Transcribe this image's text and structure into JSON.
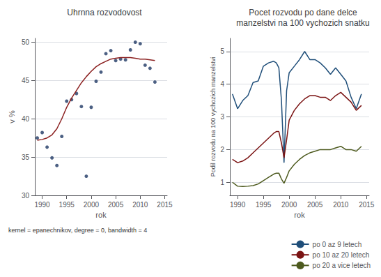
{
  "chart_data": [
    {
      "type": "scatter",
      "title": "Uhrnna rozvodovost",
      "xlabel": "rok",
      "ylabel": "v %",
      "annotations": [
        "kernel = epanechnikov, degree = 0, bandwidth = 4"
      ],
      "xlim": [
        1988.5,
        2015.5
      ],
      "ylim": [
        30,
        50.5
      ],
      "xticks": [
        1990,
        1995,
        2000,
        2005,
        2010,
        2015
      ],
      "yticks": [
        30,
        35,
        40,
        45,
        50
      ],
      "grid": true,
      "x": [
        1989,
        1990,
        1991,
        1992,
        1993,
        1994,
        1995,
        1996,
        1997,
        1998,
        1999,
        2000,
        2001,
        2002,
        2003,
        2004,
        2005,
        2006,
        2007,
        2008,
        2009,
        2010,
        2011,
        2012,
        2013
      ],
      "series": [
        {
          "type": "scatter",
          "color": "#1f3864",
          "marker": "circle",
          "values": [
            37.5,
            38.2,
            36.3,
            34.9,
            33.9,
            37.7,
            42.3,
            42.5,
            43.3,
            41.6,
            32.5,
            41.5,
            44.9,
            46.1,
            48.5,
            48.9,
            47.6,
            47.8,
            47.7,
            49.0,
            50.0,
            49.8,
            47.0,
            46.6,
            44.8
          ]
        },
        {
          "type": "line",
          "color": "#8b2020",
          "values": [
            37.2,
            37.3,
            37.5,
            37.9,
            38.7,
            40.0,
            41.5,
            42.7,
            43.7,
            44.7,
            45.5,
            46.2,
            46.8,
            47.2,
            47.5,
            47.8,
            47.9,
            48.0,
            48.0,
            48.0,
            47.9,
            47.8,
            47.8,
            47.7,
            47.6
          ]
        }
      ]
    },
    {
      "type": "line",
      "title": "Pocet rozvodu po dane delce\nmanzelstvi na 100 vychozich snatku",
      "xlabel": "rok",
      "ylabel": "Podil rozvodu na 100 vychozich manzelstvi",
      "xlim": [
        1988.5,
        2015.5
      ],
      "ylim": [
        0.6,
        5.4
      ],
      "xticks": [
        1990,
        1995,
        2000,
        2005,
        2010,
        2015
      ],
      "yticks": [
        1,
        2,
        3,
        4,
        5
      ],
      "grid": true,
      "legend": "lower right",
      "x": [
        1989,
        1990,
        1991,
        1992,
        1993,
        1994,
        1995,
        1996,
        1997,
        1997.5,
        1998,
        1998.5,
        1999,
        1999.5,
        2000,
        2001,
        2002,
        2003,
        2004,
        2005,
        2006,
        2007,
        2008,
        2009,
        2010,
        2011,
        2012,
        2013,
        2014
      ],
      "series": [
        {
          "name": "po 0 az 9 letech",
          "color": "#1f4e79",
          "values": [
            3.7,
            3.25,
            3.5,
            3.65,
            4.05,
            4.1,
            4.55,
            4.65,
            4.7,
            4.65,
            4.5,
            3.5,
            1.6,
            3.8,
            4.35,
            4.55,
            4.75,
            5.0,
            4.75,
            4.75,
            4.65,
            4.5,
            4.3,
            4.5,
            4.3,
            4.1,
            3.6,
            3.25,
            3.7
          ]
        },
        {
          "name": "po 10 az 20 letech",
          "color": "#7b1414",
          "values": [
            1.7,
            1.6,
            1.65,
            1.75,
            1.9,
            2.05,
            2.2,
            2.35,
            2.5,
            2.55,
            2.55,
            2.2,
            1.75,
            2.3,
            2.9,
            3.2,
            3.4,
            3.55,
            3.65,
            3.65,
            3.6,
            3.6,
            3.5,
            3.65,
            3.75,
            3.6,
            3.45,
            3.2,
            3.35
          ]
        },
        {
          "name": "po 20 a vice letech",
          "color": "#4d5a1e",
          "values": [
            1.0,
            0.88,
            0.87,
            0.88,
            0.9,
            0.95,
            1.05,
            1.15,
            1.25,
            1.28,
            1.28,
            1.1,
            0.97,
            1.15,
            1.35,
            1.55,
            1.7,
            1.82,
            1.9,
            1.95,
            2.0,
            2.0,
            2.0,
            2.05,
            2.1,
            2.0,
            2.0,
            1.95,
            2.1
          ]
        }
      ]
    }
  ]
}
